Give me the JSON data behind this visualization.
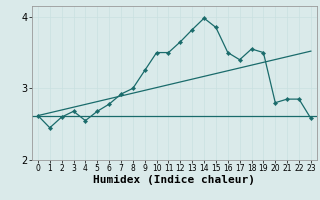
{
  "xlabel": "Humidex (Indice chaleur)",
  "background_color": "#daeaea",
  "line_color": "#1a6b6b",
  "grid_color_major": "#c8e0e0",
  "grid_color_minor": "#c8e0e0",
  "xlim": [
    -0.5,
    23.5
  ],
  "ylim": [
    2.0,
    4.15
  ],
  "yticks": [
    2,
    3,
    4
  ],
  "xticks": [
    0,
    1,
    2,
    3,
    4,
    5,
    6,
    7,
    8,
    9,
    10,
    11,
    12,
    13,
    14,
    15,
    16,
    17,
    18,
    19,
    20,
    21,
    22,
    23
  ],
  "series1_x": [
    0,
    1,
    2,
    3,
    4,
    5,
    6,
    7,
    8,
    9,
    10,
    11,
    12,
    13,
    14,
    15,
    16,
    17,
    18,
    19,
    20,
    21,
    22,
    23
  ],
  "series1_y": [
    2.62,
    2.45,
    2.6,
    2.68,
    2.55,
    2.68,
    2.78,
    2.92,
    3.0,
    3.25,
    3.5,
    3.5,
    3.65,
    3.82,
    3.98,
    3.85,
    3.5,
    3.4,
    3.55,
    3.5,
    2.8,
    2.85,
    2.85,
    2.58
  ],
  "flat_line_y": 2.62,
  "diag_line_x": [
    0,
    23
  ],
  "diag_line_y": [
    2.62,
    3.52
  ],
  "tick_fontsize": 6.5,
  "xlabel_fontsize": 8
}
